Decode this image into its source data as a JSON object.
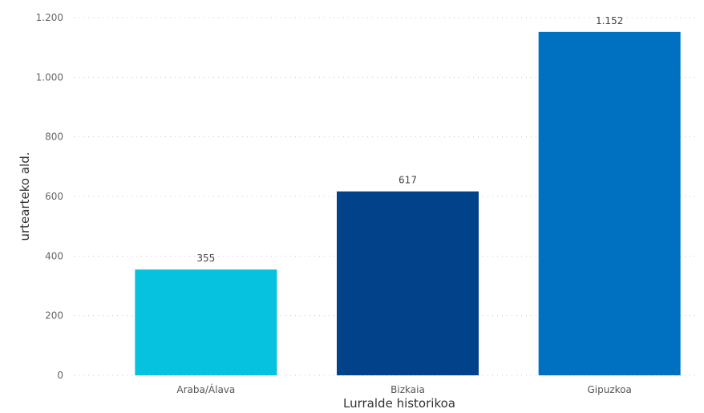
{
  "chart_data": {
    "type": "bar",
    "xlabel": "Lurralde historikoa",
    "ylabel": "urtearteko ald.",
    "ylim": [
      0,
      1200
    ],
    "yticks": [
      0,
      200,
      400,
      600,
      800,
      1000,
      1200
    ],
    "ytick_labels": [
      "0",
      "200",
      "400",
      "600",
      "800",
      "1.000",
      "1.200"
    ],
    "categories": [
      "Araba/Álava",
      "Bizkaia",
      "Gipuzkoa"
    ],
    "values": [
      355,
      617,
      1152
    ],
    "value_labels": [
      "355",
      "617",
      "1.152"
    ],
    "colors": [
      "#07c2de",
      "#02428a",
      "#0071c1"
    ],
    "grid": true
  }
}
